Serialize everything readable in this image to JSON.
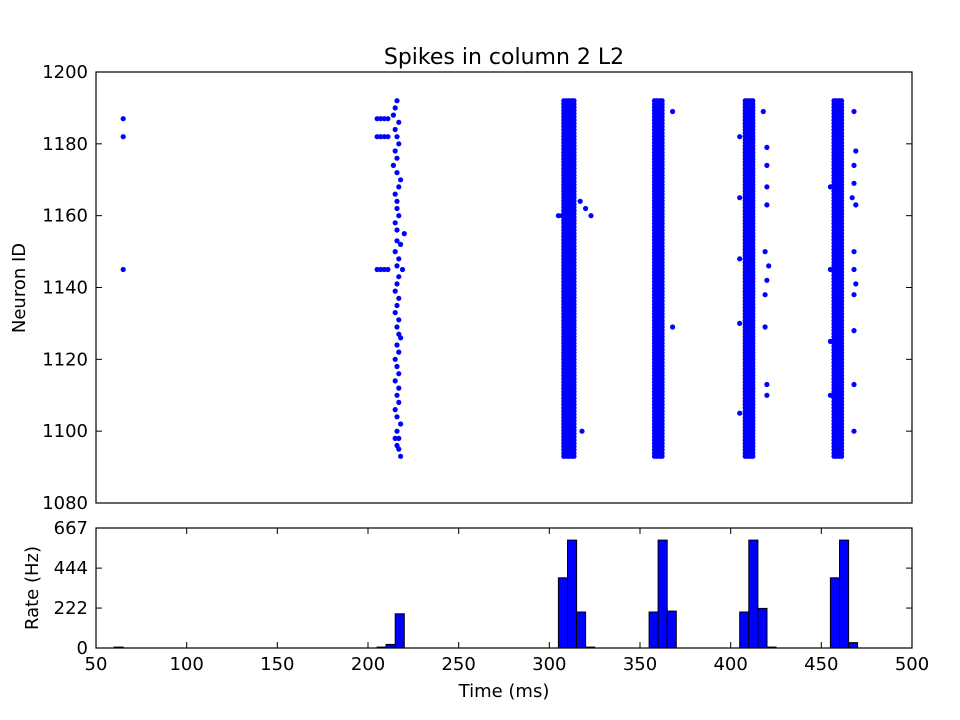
{
  "figure": {
    "title": "Spikes in column 2 L2",
    "xlabel": "Time (ms)"
  },
  "chart_data": [
    {
      "type": "scatter",
      "title": "Spikes in column 2 L2",
      "xlabel": "",
      "ylabel": "Neuron ID",
      "xlim": [
        50,
        500
      ],
      "ylim": [
        1080,
        1200
      ],
      "xticks": [],
      "yticks": [
        1080,
        1100,
        1120,
        1140,
        1160,
        1180,
        1200
      ],
      "grid": false,
      "marker_color": "#0000ff",
      "dense_bands": [
        {
          "x_min": 308,
          "x_max": 314,
          "y_min": 1093,
          "y_max": 1192
        },
        {
          "x_min": 358,
          "x_max": 363,
          "y_min": 1093,
          "y_max": 1192
        },
        {
          "x_min": 408,
          "x_max": 413,
          "y_min": 1093,
          "y_max": 1192
        },
        {
          "x_min": 457,
          "x_max": 462,
          "y_min": 1093,
          "y_max": 1192
        }
      ],
      "points": [
        [
          65,
          1187
        ],
        [
          65,
          1182
        ],
        [
          65,
          1145
        ],
        [
          205,
          1187
        ],
        [
          207,
          1187
        ],
        [
          209,
          1187
        ],
        [
          211,
          1187
        ],
        [
          205,
          1182
        ],
        [
          207,
          1182
        ],
        [
          209,
          1182
        ],
        [
          211,
          1182
        ],
        [
          205,
          1145
        ],
        [
          207,
          1145
        ],
        [
          209,
          1145
        ],
        [
          211,
          1145
        ],
        [
          216,
          1192
        ],
        [
          215,
          1190
        ],
        [
          214,
          1188
        ],
        [
          217,
          1186
        ],
        [
          215,
          1184
        ],
        [
          216,
          1182
        ],
        [
          217,
          1180
        ],
        [
          215,
          1178
        ],
        [
          216,
          1176
        ],
        [
          214,
          1174
        ],
        [
          216,
          1172
        ],
        [
          218,
          1170
        ],
        [
          217,
          1168
        ],
        [
          215,
          1166
        ],
        [
          216,
          1164
        ],
        [
          216,
          1162
        ],
        [
          217,
          1160
        ],
        [
          215,
          1158
        ],
        [
          216,
          1156
        ],
        [
          220,
          1155
        ],
        [
          216,
          1153
        ],
        [
          218,
          1152
        ],
        [
          215,
          1150
        ],
        [
          217,
          1148
        ],
        [
          216,
          1146
        ],
        [
          219,
          1145
        ],
        [
          217,
          1143
        ],
        [
          216,
          1141
        ],
        [
          215,
          1139
        ],
        [
          217,
          1137
        ],
        [
          216,
          1135
        ],
        [
          215,
          1133
        ],
        [
          217,
          1131
        ],
        [
          216,
          1129
        ],
        [
          217,
          1127
        ],
        [
          218,
          1126
        ],
        [
          216,
          1124
        ],
        [
          217,
          1122
        ],
        [
          215,
          1120
        ],
        [
          216,
          1118
        ],
        [
          217,
          1116
        ],
        [
          215,
          1114
        ],
        [
          217,
          1112
        ],
        [
          216,
          1110
        ],
        [
          217,
          1108
        ],
        [
          215,
          1106
        ],
        [
          216,
          1104
        ],
        [
          218,
          1102
        ],
        [
          216,
          1100
        ],
        [
          217,
          1098
        ],
        [
          215,
          1098
        ],
        [
          216,
          1096
        ],
        [
          217,
          1095
        ],
        [
          218,
          1093
        ],
        [
          305,
          1160
        ],
        [
          307,
          1160
        ],
        [
          317,
          1164
        ],
        [
          320,
          1162
        ],
        [
          323,
          1160
        ],
        [
          318,
          1100
        ],
        [
          368,
          1189
        ],
        [
          368,
          1129
        ],
        [
          418,
          1189
        ],
        [
          420,
          1179
        ],
        [
          420,
          1174
        ],
        [
          420,
          1168
        ],
        [
          420,
          1163
        ],
        [
          419,
          1150
        ],
        [
          421,
          1146
        ],
        [
          420,
          1142
        ],
        [
          419,
          1138
        ],
        [
          419,
          1129
        ],
        [
          420,
          1113
        ],
        [
          420,
          1110
        ],
        [
          405,
          1182
        ],
        [
          405,
          1165
        ],
        [
          405,
          1148
        ],
        [
          405,
          1130
        ],
        [
          405,
          1105
        ],
        [
          455,
          1145
        ],
        [
          455,
          1168
        ],
        [
          455,
          1125
        ],
        [
          455,
          1110
        ],
        [
          468,
          1189
        ],
        [
          469,
          1178
        ],
        [
          468,
          1174
        ],
        [
          468,
          1169
        ],
        [
          467,
          1165
        ],
        [
          469,
          1163
        ],
        [
          468,
          1150
        ],
        [
          468,
          1145
        ],
        [
          469,
          1141
        ],
        [
          468,
          1138
        ],
        [
          468,
          1128
        ],
        [
          468,
          1113
        ],
        [
          468,
          1100
        ]
      ]
    },
    {
      "type": "bar",
      "title": "",
      "xlabel": "Time (ms)",
      "ylabel": "Rate (Hz)",
      "xlim": [
        50,
        500
      ],
      "ylim": [
        0,
        667
      ],
      "xticks": [
        50,
        100,
        150,
        200,
        250,
        300,
        350,
        400,
        450,
        500
      ],
      "yticks": [
        0,
        222,
        444,
        667
      ],
      "bin_width": 5,
      "bar_color": "#0000ff",
      "bins": [
        60,
        205,
        210,
        215,
        305,
        310,
        315,
        320,
        355,
        360,
        365,
        405,
        410,
        415,
        420,
        455,
        460,
        465
      ],
      "values": [
        5,
        5,
        20,
        190,
        390,
        600,
        200,
        5,
        200,
        600,
        205,
        200,
        600,
        220,
        5,
        390,
        600,
        30
      ]
    }
  ]
}
